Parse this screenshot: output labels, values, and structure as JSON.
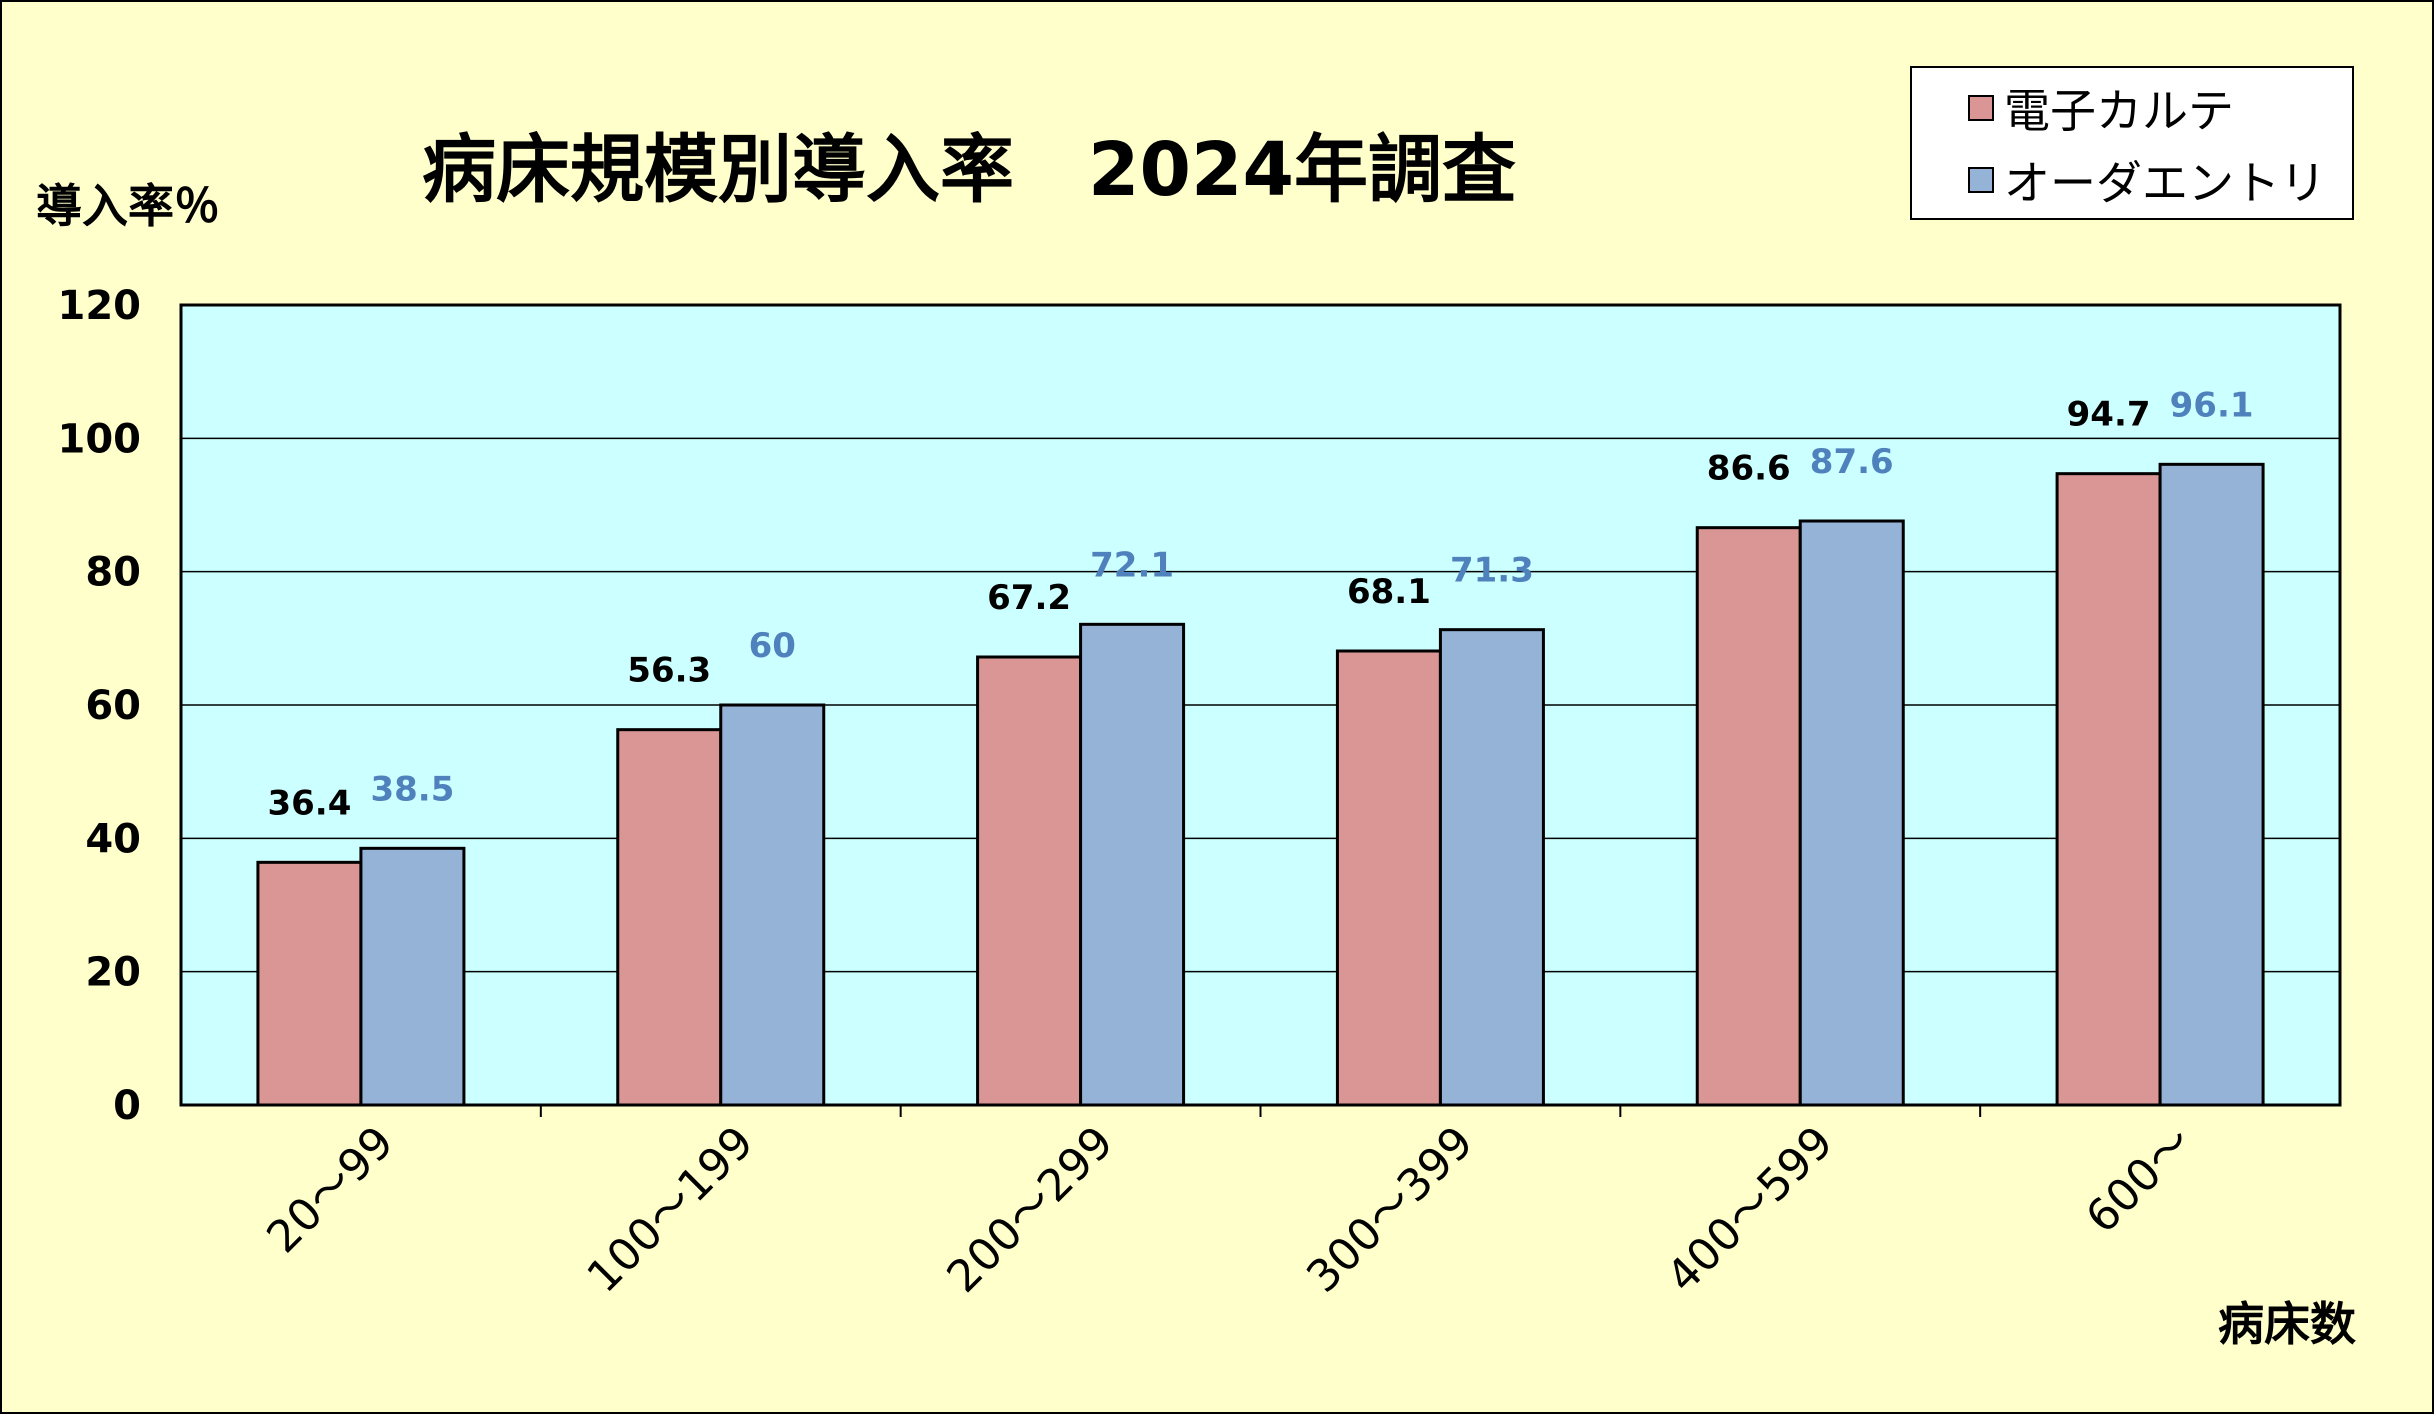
{
  "chart_data": {
    "type": "bar",
    "title": "病床規模別導入率　2024年調査",
    "ylabel": "導入率％",
    "xlabel": "病床数",
    "ylim": [
      0,
      120
    ],
    "yticks": [
      0,
      20,
      40,
      60,
      80,
      100,
      120
    ],
    "grid": true,
    "legend_position": "top-right",
    "categories": [
      "20～99",
      "100～199",
      "200～299",
      "300～399",
      "400～599",
      "600～"
    ],
    "series": [
      {
        "name": "電子カルテ",
        "values": [
          36.4,
          56.3,
          67.2,
          68.1,
          86.6,
          94.7
        ],
        "color": "#d99694",
        "label_color": "#000000"
      },
      {
        "name": "オーダエントリ",
        "values": [
          38.5,
          60,
          72.1,
          71.3,
          87.6,
          96.1
        ],
        "color": "#95b3d7",
        "label_color": "#4f81bd"
      }
    ],
    "plot_background": "#ccffff",
    "page_background": "#ffffcc"
  }
}
